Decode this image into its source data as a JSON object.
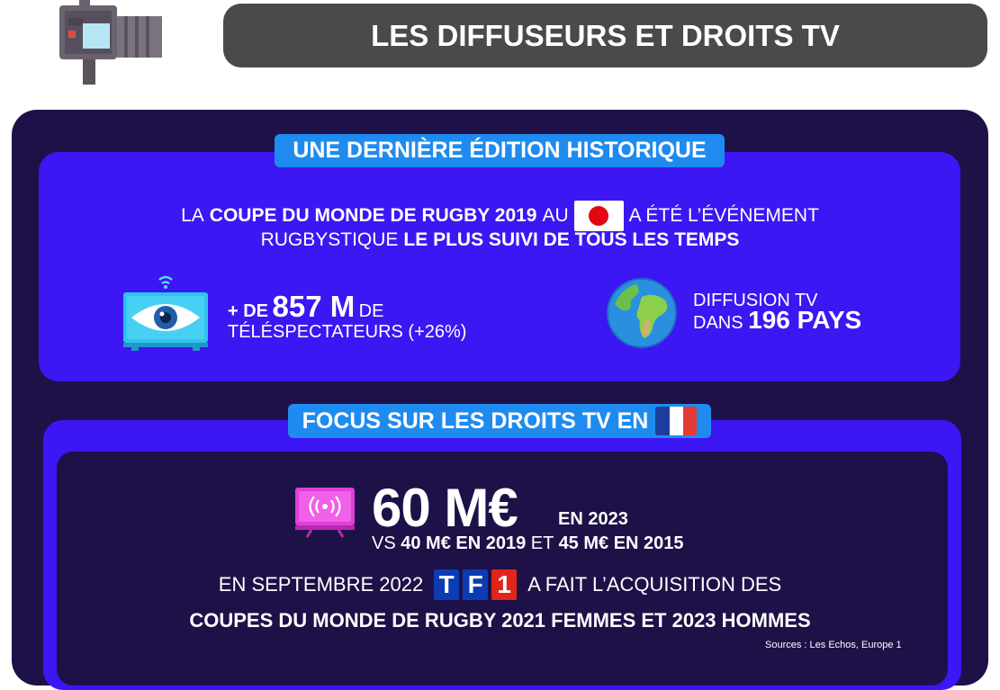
{
  "header": {
    "title": "LES DIFFUSEURS ET DROITS TV",
    "icon": "camera-icon"
  },
  "section1": {
    "label": "UNE DERNIÈRE ÉDITION HISTORIQUE",
    "line1": {
      "pre": "LA",
      "bold": "COUPE DU MONDE DE RUGBY 2019",
      "mid": "AU",
      "post": "A ÉTÉ L’ÉVÉNEMENT"
    },
    "line2": {
      "pre": "RUGBYSTIQUE",
      "bold": "LE PLUS SUIVI DE TOUS LES TEMPS"
    },
    "flag": "japan-flag",
    "stat_viewers": {
      "plus": "+ DE",
      "value": "857 M",
      "unit": "DE",
      "label": "TÉLÉSPECTATEURS (+26%)"
    },
    "stat_countries": {
      "line1": "DIFFUSION TV",
      "pre": "DANS",
      "value": "196 PAYS"
    }
  },
  "section2": {
    "label": "FOCUS SUR LES DROITS TV EN",
    "flag": "france-flag",
    "amount": "60 M€",
    "amount_suffix": "EN 2023",
    "vs": {
      "pre": "VS",
      "v2019": "40 M€ EN 2019",
      "mid": "ET",
      "v2015": "45 M€ EN 2015"
    },
    "sept": {
      "pre": "EN SEPTEMBRE 2022",
      "brand": [
        "T",
        "F",
        "1"
      ],
      "post": "A FAIT L’ACQUISITION DES"
    },
    "coupes": "COUPES DU MONDE DE RUGBY 2021 FEMMES ET 2023 HOMMES",
    "sources": "Sources : Les Echos, Europe 1"
  },
  "colors": {
    "dark": "#1e1148",
    "blue": "#3c17f3",
    "label": "#1f8bf0",
    "header": "#4a4a4c"
  }
}
